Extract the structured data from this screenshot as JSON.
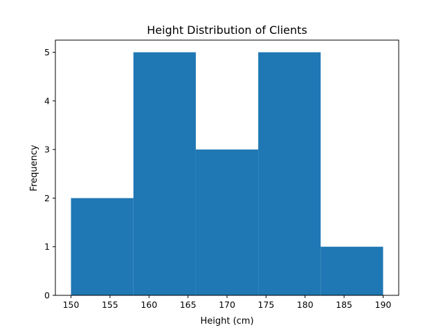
{
  "chart_data": {
    "type": "histogram",
    "title": "Height Distribution of Clients",
    "xlabel": "Height (cm)",
    "ylabel": "Frequency",
    "xlim": [
      148,
      192
    ],
    "ylim": [
      0,
      5.25
    ],
    "xticks": [
      150,
      155,
      160,
      165,
      170,
      175,
      180,
      185,
      190
    ],
    "yticks": [
      0,
      1,
      2,
      3,
      4,
      5
    ],
    "bins": [
      {
        "start": 150,
        "end": 158,
        "count": 2
      },
      {
        "start": 158,
        "end": 166,
        "count": 5
      },
      {
        "start": 166,
        "end": 174,
        "count": 3
      },
      {
        "start": 174,
        "end": 182,
        "count": 5
      },
      {
        "start": 182,
        "end": 190,
        "count": 1
      }
    ],
    "bar_color": "#1f77b4",
    "grid": false
  }
}
